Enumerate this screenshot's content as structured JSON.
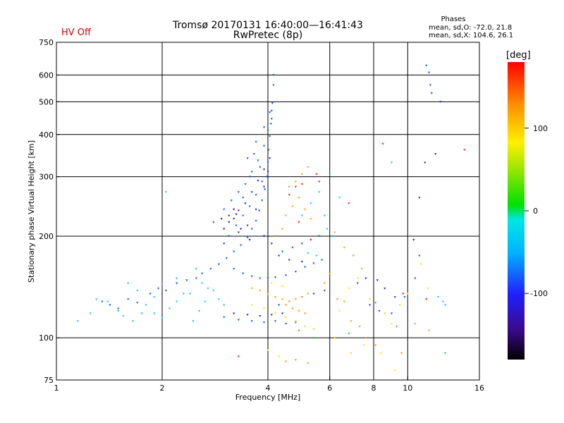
{
  "header": {
    "status_label": "HV Off",
    "title_line1": "Tromsø 20170131 16:40:00—16:41:43",
    "title_line2": "RwPretec (8p)",
    "phases_title": "Phases",
    "phases_o": "mean, sd,O: -72.0, 21.8",
    "phases_x": "mean, sd,X: 104.6, 26.1"
  },
  "colorbar": {
    "unit_label": "[deg]",
    "ticks": [
      {
        "label": "100",
        "value": 100
      },
      {
        "label": "0",
        "value": 0
      },
      {
        "label": "-100",
        "value": -100
      }
    ],
    "range": [
      -180,
      180
    ]
  },
  "chart_data": {
    "type": "scatter",
    "title": "Tromsø 20170131 16:40:00—16:41:43",
    "subtitle": "RwPretec (8p)",
    "xlabel": "Frequency [MHz]",
    "ylabel": "Stationary phase Virtual Height [km]",
    "xscale": "log2",
    "yscale": "log",
    "xlim": [
      1,
      16
    ],
    "ylim": [
      75,
      750
    ],
    "grid": true,
    "x_ticks": [
      {
        "label": "1",
        "value": 1
      },
      {
        "label": "2",
        "value": 2
      },
      {
        "label": "4",
        "value": 4
      },
      {
        "label": "6",
        "value": 6
      },
      {
        "label": "8",
        "value": 8
      },
      {
        "label": "10",
        "value": 10
      },
      {
        "label": "16",
        "value": 16
      }
    ],
    "x_gridlines": [
      2,
      4,
      6,
      8,
      10
    ],
    "y_ticks": [
      {
        "label": "750",
        "value": 750
      },
      {
        "label": "600",
        "value": 600
      },
      {
        "label": "500",
        "value": 500
      },
      {
        "label": "400",
        "value": 400
      },
      {
        "label": "300",
        "value": 300
      },
      {
        "label": "200",
        "value": 200
      },
      {
        "label": "100",
        "value": 100
      },
      {
        "label": "75",
        "value": 75
      }
    ],
    "y_gridlines": [
      100,
      200,
      300,
      400,
      500,
      600
    ],
    "color_meaning": "phase [deg]",
    "series": [
      {
        "color": "#0a5cff",
        "points": [
          [
            1.35,
            128
          ],
          [
            1.42,
            125
          ],
          [
            1.5,
            122
          ],
          [
            1.6,
            130
          ],
          [
            1.7,
            127
          ],
          [
            1.85,
            135
          ],
          [
            1.95,
            140
          ],
          [
            2.05,
            138
          ],
          [
            2.2,
            145
          ],
          [
            2.35,
            148
          ],
          [
            2.5,
            150
          ],
          [
            2.6,
            155
          ],
          [
            2.75,
            160
          ],
          [
            2.9,
            165
          ],
          [
            3.05,
            172
          ],
          [
            3.2,
            180
          ],
          [
            3.35,
            188
          ],
          [
            3.5,
            198
          ],
          [
            3.6,
            210
          ],
          [
            3.7,
            222
          ],
          [
            3.78,
            238
          ],
          [
            3.85,
            255
          ],
          [
            3.92,
            275
          ],
          [
            3.97,
            300
          ],
          [
            4.0,
            330
          ],
          [
            4.02,
            360
          ],
          [
            4.05,
            395
          ],
          [
            4.08,
            430
          ],
          [
            4.1,
            470
          ],
          [
            4.12,
            495
          ],
          [
            4.15,
            600
          ],
          [
            4.15,
            560
          ],
          [
            3.2,
            160
          ],
          [
            3.4,
            155
          ],
          [
            3.6,
            152
          ],
          [
            3.8,
            150
          ],
          [
            4.0,
            150
          ],
          [
            4.2,
            151
          ],
          [
            4.5,
            153
          ],
          [
            4.8,
            157
          ],
          [
            5.1,
            162
          ],
          [
            5.4,
            166
          ],
          [
            5.7,
            170
          ],
          [
            3.0,
            115
          ],
          [
            3.3,
            113
          ],
          [
            3.6,
            112
          ],
          [
            3.9,
            111
          ],
          [
            4.2,
            112
          ],
          [
            4.5,
            110
          ],
          [
            4.8,
            111
          ],
          [
            3.1,
            200
          ],
          [
            3.25,
            215
          ],
          [
            3.4,
            230
          ],
          [
            3.55,
            245
          ],
          [
            3.7,
            265
          ],
          [
            3.85,
            290
          ],
          [
            2.8,
            220
          ],
          [
            3.0,
            240
          ],
          [
            3.15,
            255
          ],
          [
            3.3,
            270
          ],
          [
            3.45,
            285
          ],
          [
            3.6,
            310
          ],
          [
            3.75,
            335
          ],
          [
            3.9,
            370
          ],
          [
            4.0,
            410
          ],
          [
            4.1,
            445
          ],
          [
            3.5,
            340
          ],
          [
            3.7,
            380
          ],
          [
            3.9,
            420
          ],
          [
            4.05,
            465
          ],
          [
            3.4,
            260
          ],
          [
            3.55,
            300
          ],
          [
            3.8,
            320
          ],
          [
            3.65,
            350
          ],
          [
            4.3,
            125
          ],
          [
            4.6,
            128
          ],
          [
            5.0,
            132
          ],
          [
            5.4,
            135
          ],
          [
            5.8,
            138
          ],
          [
            7.2,
            145
          ],
          [
            7.8,
            125
          ],
          [
            8.3,
            120
          ],
          [
            9.0,
            118
          ],
          [
            9.8,
            132
          ],
          [
            10.5,
            150
          ],
          [
            10.8,
            175
          ],
          [
            11.3,
            640
          ],
          [
            11.5,
            610
          ],
          [
            11.6,
            560
          ],
          [
            11.7,
            530
          ],
          [
            12.4,
            500
          ],
          [
            4.4,
            180
          ],
          [
            4.7,
            185
          ],
          [
            5.0,
            190
          ],
          [
            5.3,
            195
          ],
          [
            5.6,
            200
          ]
        ]
      },
      {
        "color": "#1c2bd6",
        "points": [
          [
            3.1,
            230
          ],
          [
            3.2,
            225
          ],
          [
            3.3,
            238
          ],
          [
            3.45,
            250
          ],
          [
            3.6,
            270
          ],
          [
            3.75,
            292
          ],
          [
            3.9,
            315
          ],
          [
            4.05,
            340
          ],
          [
            3.2,
            118
          ],
          [
            3.5,
            117
          ],
          [
            3.8,
            116
          ],
          [
            4.1,
            117
          ],
          [
            4.4,
            118
          ],
          [
            3.0,
            190
          ],
          [
            3.3,
            205
          ],
          [
            3.5,
            215
          ],
          [
            3.7,
            240
          ],
          [
            3.9,
            280
          ],
          [
            4.0,
            310
          ],
          [
            3.9,
            200
          ],
          [
            4.1,
            190
          ],
          [
            4.3,
            175
          ],
          [
            4.6,
            170
          ],
          [
            5.0,
            168
          ],
          [
            7.6,
            150
          ],
          [
            8.2,
            148
          ],
          [
            8.6,
            140
          ],
          [
            9.2,
            132
          ],
          [
            10.4,
            195
          ],
          [
            12.0,
            350
          ],
          [
            10.8,
            260
          ],
          [
            11.2,
            330
          ]
        ]
      },
      {
        "color": "#1fc3f0",
        "points": [
          [
            1.15,
            112
          ],
          [
            1.25,
            118
          ],
          [
            1.3,
            130
          ],
          [
            1.4,
            128
          ],
          [
            1.5,
            120
          ],
          [
            1.55,
            116
          ],
          [
            1.65,
            112
          ],
          [
            1.75,
            118
          ],
          [
            1.8,
            125
          ],
          [
            1.9,
            118
          ],
          [
            2.0,
            115
          ],
          [
            2.1,
            122
          ],
          [
            2.2,
            128
          ],
          [
            2.3,
            135
          ],
          [
            2.45,
            112
          ],
          [
            2.55,
            120
          ],
          [
            2.65,
            128
          ],
          [
            2.7,
            140
          ],
          [
            2.4,
            135
          ],
          [
            2.2,
            150
          ],
          [
            2.0,
            145
          ],
          [
            1.9,
            132
          ],
          [
            1.7,
            138
          ],
          [
            1.6,
            145
          ],
          [
            2.05,
            270
          ],
          [
            2.5,
            160
          ],
          [
            2.6,
            145
          ],
          [
            2.8,
            138
          ],
          [
            2.9,
            130
          ],
          [
            3.0,
            125
          ],
          [
            5.0,
            230
          ],
          [
            5.3,
            250
          ],
          [
            5.6,
            270
          ],
          [
            5.8,
            230
          ],
          [
            5.9,
            210
          ],
          [
            6.1,
            200
          ],
          [
            6.4,
            260
          ],
          [
            9.0,
            330
          ],
          [
            5.5,
            175
          ],
          [
            5.2,
            178
          ],
          [
            12.6,
            128
          ],
          [
            12.2,
            132
          ],
          [
            12.8,
            125
          ]
        ]
      },
      {
        "color": "#ff9c00",
        "points": [
          [
            3.6,
            140
          ],
          [
            3.8,
            138
          ],
          [
            4.0,
            135
          ],
          [
            4.2,
            132
          ],
          [
            4.4,
            130
          ],
          [
            4.6,
            128
          ],
          [
            4.8,
            130
          ],
          [
            5.0,
            132
          ],
          [
            5.2,
            135
          ],
          [
            4.5,
            125
          ],
          [
            4.7,
            122
          ],
          [
            4.9,
            120
          ],
          [
            5.1,
            118
          ],
          [
            4.6,
            280
          ],
          [
            4.8,
            290
          ],
          [
            5.0,
            305
          ],
          [
            5.2,
            320
          ],
          [
            4.5,
            230
          ],
          [
            4.7,
            245
          ],
          [
            4.9,
            260
          ],
          [
            5.1,
            240
          ],
          [
            5.3,
            225
          ],
          [
            4.2,
            200
          ],
          [
            4.4,
            210
          ],
          [
            6.3,
            130
          ],
          [
            6.6,
            128
          ],
          [
            6.9,
            112
          ],
          [
            7.3,
            108
          ],
          [
            7.6,
            100
          ],
          [
            8.1,
            95
          ],
          [
            9.6,
            90
          ],
          [
            10.5,
            110
          ],
          [
            11.5,
            105
          ],
          [
            6.2,
            205
          ],
          [
            6.6,
            185
          ],
          [
            7.0,
            175
          ],
          [
            7.4,
            160
          ],
          [
            5.8,
            145
          ],
          [
            6.0,
            155
          ],
          [
            4.5,
            85
          ],
          [
            4.8,
            86
          ],
          [
            5.2,
            84
          ]
        ]
      },
      {
        "color": "#ffe000",
        "points": [
          [
            3.6,
            125
          ],
          [
            3.9,
            122
          ],
          [
            4.2,
            118
          ],
          [
            4.5,
            115
          ],
          [
            4.8,
            112
          ],
          [
            5.1,
            108
          ],
          [
            5.4,
            106
          ],
          [
            4.1,
            145
          ],
          [
            4.4,
            142
          ],
          [
            6.4,
            120
          ],
          [
            6.8,
            140
          ],
          [
            7.2,
            150
          ],
          [
            7.8,
            130
          ],
          [
            8.6,
            118
          ],
          [
            9.0,
            110
          ],
          [
            9.5,
            125
          ],
          [
            10.0,
            135
          ],
          [
            10.9,
            165
          ],
          [
            11.4,
            140
          ],
          [
            7.5,
            95
          ],
          [
            8.4,
            90
          ],
          [
            9.2,
            80
          ],
          [
            4.0,
            92
          ],
          [
            4.3,
            88
          ],
          [
            6.2,
            100
          ],
          [
            6.9,
            90
          ]
        ]
      },
      {
        "color": "#ff2000",
        "points": [
          [
            4.6,
            265
          ],
          [
            4.8,
            280
          ],
          [
            5.0,
            285
          ],
          [
            5.5,
            305
          ],
          [
            5.6,
            290
          ],
          [
            4.9,
            220
          ],
          [
            5.3,
            195
          ],
          [
            6.8,
            250
          ],
          [
            8.5,
            375
          ],
          [
            14.5,
            360
          ],
          [
            9.7,
            135
          ],
          [
            11.3,
            130
          ],
          [
            3.3,
            88
          ]
        ]
      },
      {
        "color": "#2ec83a",
        "points": [
          [
            4.9,
            105
          ],
          [
            5.4,
            100
          ],
          [
            6.8,
            103
          ],
          [
            8.1,
            127
          ],
          [
            9.3,
            108
          ],
          [
            12.8,
            90
          ],
          [
            6.0,
            305
          ]
        ]
      },
      {
        "color": "#3a0aa0",
        "points": [
          [
            3.0,
            210
          ],
          [
            3.1,
            220
          ],
          [
            3.25,
            232
          ],
          [
            3.35,
            210
          ],
          [
            2.95,
            225
          ],
          [
            3.55,
            195
          ],
          [
            3.2,
            240
          ]
        ]
      }
    ]
  }
}
